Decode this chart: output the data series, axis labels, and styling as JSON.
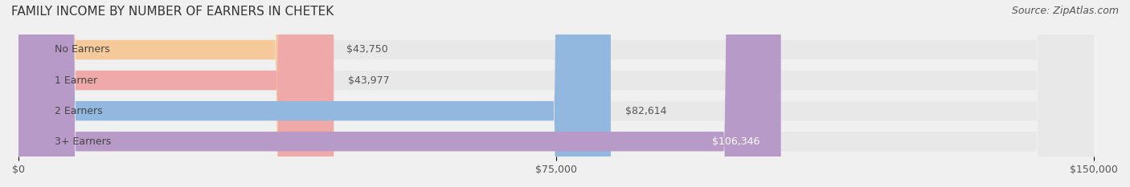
{
  "title": "FAMILY INCOME BY NUMBER OF EARNERS IN CHETEK",
  "source": "Source: ZipAtlas.com",
  "categories": [
    "No Earners",
    "1 Earner",
    "2 Earners",
    "3+ Earners"
  ],
  "values": [
    43750,
    43977,
    82614,
    106346
  ],
  "bar_colors": [
    "#f5c99a",
    "#f0a9a9",
    "#93b8e0",
    "#b89ac8"
  ],
  "label_colors": [
    "#555555",
    "#555555",
    "#555555",
    "#ffffff"
  ],
  "value_labels": [
    "$43,750",
    "$43,977",
    "$82,614",
    "$106,346"
  ],
  "xlim": [
    0,
    150000
  ],
  "xticks": [
    0,
    75000,
    150000
  ],
  "xtick_labels": [
    "$0",
    "$75,000",
    "$150,000"
  ],
  "background_color": "#f0f0f0",
  "bar_background_color": "#e8e8e8",
  "title_fontsize": 11,
  "source_fontsize": 9,
  "label_fontsize": 9,
  "value_fontsize": 9,
  "tick_fontsize": 9
}
